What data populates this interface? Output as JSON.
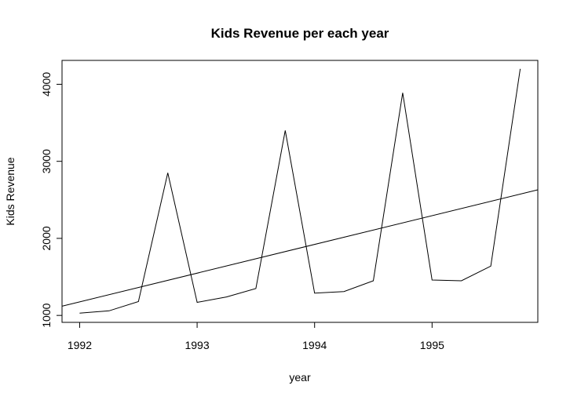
{
  "chart_data": {
    "type": "line",
    "title": "Kids Revenue per each year",
    "xlabel": "year",
    "ylabel": "Kids Revenue",
    "xlim": [
      1991.85,
      1995.9
    ],
    "ylim": [
      910,
      4310
    ],
    "x_ticks": [
      1992,
      1993,
      1994,
      1995
    ],
    "x_tick_labels": [
      "1992",
      "1993",
      "1994",
      "1995"
    ],
    "y_ticks": [
      1000,
      2000,
      3000,
      4000
    ],
    "y_tick_labels": [
      "1000",
      "2000",
      "3000",
      "4000"
    ],
    "grid": false,
    "series": [
      {
        "x": [
          1992.0,
          1992.25,
          1992.5,
          1992.75,
          1993.0,
          1993.25,
          1993.5,
          1993.75,
          1994.0,
          1994.25,
          1994.5,
          1994.75,
          1995.0,
          1995.25,
          1995.5,
          1995.75
        ],
        "values": [
          1030,
          1060,
          1180,
          2850,
          1170,
          1240,
          1350,
          3400,
          1290,
          1310,
          1450,
          3890,
          1460,
          1450,
          1640,
          4200
        ],
        "color": "#000000"
      },
      {
        "x": [
          1991.85,
          1995.9
        ],
        "values": [
          1120,
          2630
        ],
        "color": "#000000"
      }
    ]
  }
}
